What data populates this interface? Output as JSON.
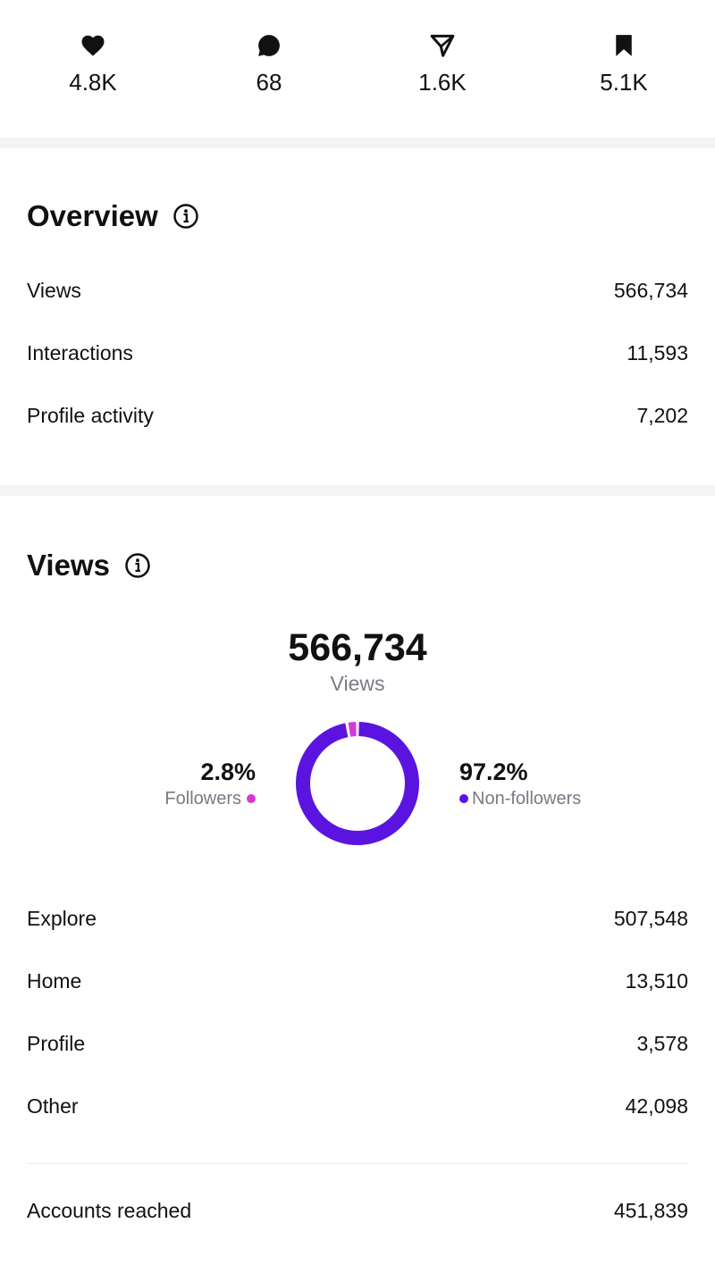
{
  "stats": [
    {
      "icon": "heart-icon",
      "value": "4.8K"
    },
    {
      "icon": "comment-icon",
      "value": "68"
    },
    {
      "icon": "share-icon",
      "value": "1.6K"
    },
    {
      "icon": "bookmark-icon",
      "value": "5.1K"
    }
  ],
  "overview": {
    "title": "Overview",
    "rows": [
      {
        "label": "Views",
        "value": "566,734"
      },
      {
        "label": "Interactions",
        "value": "11,593"
      },
      {
        "label": "Profile activity",
        "value": "7,202"
      }
    ]
  },
  "views": {
    "title": "Views",
    "total": "566,734",
    "total_label": "Views",
    "followers": {
      "pct_text": "2.8%",
      "label": "Followers",
      "fraction": 0.028,
      "color": "#d63ad6"
    },
    "non_followers": {
      "pct_text": "97.2%",
      "label": "Non-followers",
      "fraction": 0.972,
      "color": "#5b14e0"
    },
    "sources": [
      {
        "label": "Explore",
        "value": "507,548"
      },
      {
        "label": "Home",
        "value": "13,510"
      },
      {
        "label": "Profile",
        "value": "3,578"
      },
      {
        "label": "Other",
        "value": "42,098"
      }
    ],
    "accounts_reached": {
      "label": "Accounts reached",
      "value": "451,839"
    }
  },
  "colors": {
    "text": "#111111",
    "muted": "#7a7a85",
    "divider": "#f4f4f6"
  }
}
